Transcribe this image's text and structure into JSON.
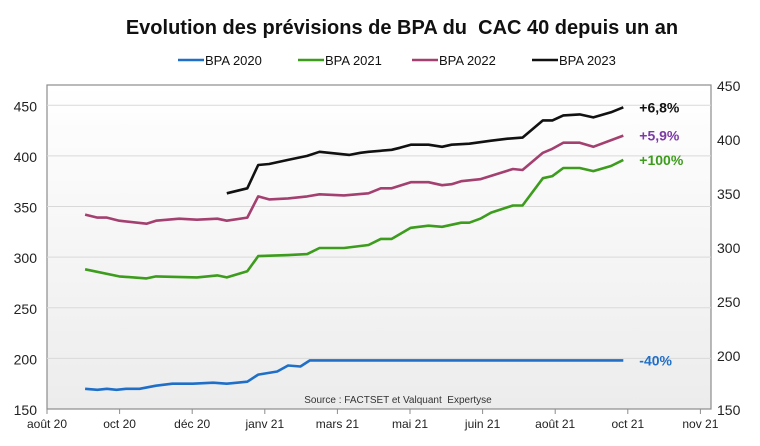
{
  "chart_data": {
    "type": "line",
    "title": "Evolution des prévisions de BPA du  CAC 40 depuis un an",
    "source": "Source : FACTSET et Valquant  Expertyse",
    "legend_position": "top",
    "grid": true,
    "x_tick_labels": [
      "août 20",
      "oct 20",
      "déc 20",
      "janv 21",
      "mars 21",
      "mai 21",
      "juin 21",
      "août 21",
      "oct 21",
      "nov 21"
    ],
    "y_ticks": [
      150,
      200,
      250,
      300,
      350,
      400,
      450
    ],
    "ylim": [
      150,
      470
    ],
    "y2_ticks": [
      150,
      200,
      250,
      300,
      350,
      400,
      450
    ],
    "y2lim": [
      150,
      450
    ],
    "series": [
      {
        "name": "BPA 2020",
        "color": "#1f6fc8",
        "label": "-40%",
        "label_color": "#1f6fc8",
        "points": [
          [
            "2020-08-29",
            170
          ],
          [
            "2020-09-07",
            169
          ],
          [
            "2020-09-14",
            170
          ],
          [
            "2020-09-21",
            169
          ],
          [
            "2020-09-28",
            170
          ],
          [
            "2020-10-08",
            170
          ],
          [
            "2020-10-20",
            173
          ],
          [
            "2020-11-01",
            175
          ],
          [
            "2020-11-16",
            175
          ],
          [
            "2020-12-01",
            176
          ],
          [
            "2020-12-11",
            175
          ],
          [
            "2020-12-26",
            177
          ],
          [
            "2021-01-03",
            184
          ],
          [
            "2021-01-17",
            187
          ],
          [
            "2021-01-25",
            193
          ],
          [
            "2021-02-03",
            192
          ],
          [
            "2021-02-10",
            198
          ],
          [
            "2021-09-28",
            198
          ]
        ]
      },
      {
        "name": "BPA 2021",
        "color": "#3c9c1c",
        "label": "+100%",
        "label_color": "#3c9c1c",
        "points": [
          [
            "2020-08-29",
            288
          ],
          [
            "2020-09-23",
            281
          ],
          [
            "2020-10-13",
            279
          ],
          [
            "2020-10-20",
            281
          ],
          [
            "2020-11-19",
            280
          ],
          [
            "2020-12-04",
            282
          ],
          [
            "2020-12-11",
            280
          ],
          [
            "2020-12-26",
            286
          ],
          [
            "2021-01-03",
            301
          ],
          [
            "2021-01-25",
            302
          ],
          [
            "2021-02-08",
            303
          ],
          [
            "2021-02-17",
            309
          ],
          [
            "2021-03-07",
            309
          ],
          [
            "2021-03-25",
            312
          ],
          [
            "2021-04-03",
            318
          ],
          [
            "2021-04-11",
            318
          ],
          [
            "2021-04-25",
            329
          ],
          [
            "2021-05-08",
            331
          ],
          [
            "2021-05-18",
            330
          ],
          [
            "2021-06-01",
            334
          ],
          [
            "2021-06-07",
            334
          ],
          [
            "2021-06-15",
            338
          ],
          [
            "2021-06-23",
            344
          ],
          [
            "2021-07-09",
            351
          ],
          [
            "2021-07-16",
            351
          ],
          [
            "2021-07-31",
            378
          ],
          [
            "2021-08-07",
            380
          ],
          [
            "2021-08-15",
            388
          ],
          [
            "2021-08-27",
            388
          ],
          [
            "2021-09-06",
            385
          ],
          [
            "2021-09-19",
            390
          ],
          [
            "2021-09-28",
            396
          ]
        ]
      },
      {
        "name": "BPA 2022",
        "color": "#a3406f",
        "label": "+5,9%",
        "label_color": "#7b3aa6",
        "points": [
          [
            "2020-08-29",
            342
          ],
          [
            "2020-09-07",
            339
          ],
          [
            "2020-09-14",
            339
          ],
          [
            "2020-09-23",
            336
          ],
          [
            "2020-10-13",
            333
          ],
          [
            "2020-10-20",
            336
          ],
          [
            "2020-11-06",
            338
          ],
          [
            "2020-11-19",
            337
          ],
          [
            "2020-12-04",
            338
          ],
          [
            "2020-12-11",
            336
          ],
          [
            "2020-12-26",
            339
          ],
          [
            "2021-01-03",
            360
          ],
          [
            "2021-01-11",
            357
          ],
          [
            "2021-01-25",
            358
          ],
          [
            "2021-02-08",
            360
          ],
          [
            "2021-02-17",
            362
          ],
          [
            "2021-03-07",
            361
          ],
          [
            "2021-03-25",
            363
          ],
          [
            "2021-04-03",
            368
          ],
          [
            "2021-04-11",
            368
          ],
          [
            "2021-04-25",
            374
          ],
          [
            "2021-05-08",
            374
          ],
          [
            "2021-05-18",
            371
          ],
          [
            "2021-05-25",
            372
          ],
          [
            "2021-06-01",
            375
          ],
          [
            "2021-06-15",
            377
          ],
          [
            "2021-06-27",
            382
          ],
          [
            "2021-07-09",
            387
          ],
          [
            "2021-07-16",
            386
          ],
          [
            "2021-07-31",
            403
          ],
          [
            "2021-08-07",
            407
          ],
          [
            "2021-08-15",
            413
          ],
          [
            "2021-08-27",
            413
          ],
          [
            "2021-09-06",
            409
          ],
          [
            "2021-09-28",
            420
          ]
        ]
      },
      {
        "name": "BPA 2023",
        "color": "#111111",
        "label": "+6,8%",
        "label_color": "#111111",
        "points": [
          [
            "2020-12-11",
            363
          ],
          [
            "2020-12-26",
            368
          ],
          [
            "2021-01-03",
            391
          ],
          [
            "2021-01-11",
            392
          ],
          [
            "2021-01-25",
            396
          ],
          [
            "2021-02-08",
            400
          ],
          [
            "2021-02-17",
            404
          ],
          [
            "2021-03-11",
            401
          ],
          [
            "2021-03-19",
            403
          ],
          [
            "2021-03-25",
            404
          ],
          [
            "2021-04-11",
            406
          ],
          [
            "2021-04-17",
            408
          ],
          [
            "2021-04-25",
            411
          ],
          [
            "2021-05-08",
            411
          ],
          [
            "2021-05-18",
            409
          ],
          [
            "2021-05-25",
            411
          ],
          [
            "2021-06-07",
            412
          ],
          [
            "2021-06-23",
            415
          ],
          [
            "2021-07-05",
            417
          ],
          [
            "2021-07-16",
            418
          ],
          [
            "2021-07-31",
            435
          ],
          [
            "2021-08-07",
            435
          ],
          [
            "2021-08-15",
            440
          ],
          [
            "2021-08-27",
            441
          ],
          [
            "2021-09-06",
            438
          ],
          [
            "2021-09-19",
            443
          ],
          [
            "2021-09-28",
            448
          ]
        ]
      }
    ]
  }
}
